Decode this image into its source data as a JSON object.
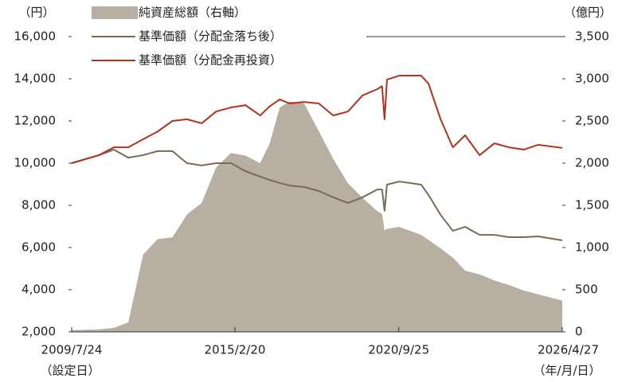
{
  "chart_data": {
    "type": "line",
    "y_label": "（円）",
    "y2_label": "（億円）",
    "x_start_note": "（設定日）",
    "x_end_note": "（年/月/日）",
    "x": [
      "2009/7/24",
      "2010/7/1",
      "2011/1/1",
      "2011/7/1",
      "2012/1/1",
      "2012/7/1",
      "2013/1/1",
      "2013/7/1",
      "2014/1/1",
      "2014/7/1",
      "2015/1/1",
      "2015/7/1",
      "2016/1/1",
      "2016/5/1",
      "2016/9/1",
      "2017/1/1",
      "2017/7/1",
      "2018/1/1",
      "2018/7/1",
      "2019/1/1",
      "2019/7/1",
      "2020/1/1",
      "2020/3/1",
      "2020/4/1",
      "2020/5/1",
      "2020/10/1",
      "2021/7/1",
      "2021/10/1",
      "2022/3/1",
      "2022/8/1",
      "2023/1/1",
      "2023/7/1",
      "2024/1/1",
      "2024/7/1",
      "2025/1/1",
      "2025/7/1",
      "2026/4/27"
    ],
    "xlim": [
      "2009/7/24",
      "2026/4/27"
    ],
    "xticks": [
      "2009/7/24",
      "2015/2/20",
      "2020/9/25",
      "2026/4/27"
    ],
    "ylim": [
      2000,
      16000
    ],
    "yticks": [
      {
        "value": 2000,
        "label": "2,000"
      },
      {
        "value": 4000,
        "label": "4,000"
      },
      {
        "value": 6000,
        "label": "6,000"
      },
      {
        "value": 8000,
        "label": "8,000"
      },
      {
        "value": 10000,
        "label": "10,000"
      },
      {
        "value": 12000,
        "label": "12,000"
      },
      {
        "value": 14000,
        "label": "14,000"
      },
      {
        "value": 16000,
        "label": "16,000"
      }
    ],
    "y2lim": [
      0,
      3500
    ],
    "y2ticks": [
      0,
      500,
      {
        "value": 1000,
        "label": "1,000"
      },
      {
        "value": 1500,
        "label": "1,500"
      },
      {
        "value": 2000,
        "label": "2,000"
      },
      {
        "value": 2500,
        "label": "2,500"
      },
      {
        "value": 3000,
        "label": "3,000"
      },
      {
        "value": 3500,
        "label": "3,500"
      }
    ],
    "series": [
      {
        "name": "純資産総額（右軸）",
        "type": "area",
        "axis": "y2",
        "color": "#b7afa2",
        "values": [
          20,
          30,
          47,
          113,
          915,
          1100,
          1120,
          1390,
          1530,
          1950,
          2120,
          2090,
          2000,
          2240,
          2660,
          2730,
          2710,
          2380,
          2050,
          1760,
          1590,
          1430,
          1400,
          1200,
          1220,
          1245,
          1150,
          1090,
          990,
          880,
          725,
          680,
          610,
          555,
          490,
          445,
          370
        ]
      },
      {
        "name": "基準価額（分配金落ち後）",
        "type": "line",
        "color": "#7a6a55",
        "values": [
          10000,
          10380,
          10640,
          10260,
          10380,
          10570,
          10570,
          10000,
          9890,
          10000,
          10000,
          9620,
          9360,
          9200,
          9060,
          8940,
          8870,
          8680,
          8380,
          8110,
          8380,
          8750,
          8750,
          7740,
          8980,
          9130,
          8980,
          8490,
          7550,
          6790,
          6980,
          6600,
          6600,
          6490,
          6490,
          6530,
          6340
        ]
      },
      {
        "name": "基準価額（分配金再投資）",
        "type": "line",
        "color": "#b5301e",
        "values": [
          10000,
          10380,
          10750,
          10750,
          11130,
          11500,
          12000,
          12080,
          11890,
          12450,
          12640,
          12750,
          12260,
          12700,
          13020,
          12830,
          12900,
          12830,
          12260,
          12450,
          13210,
          13510,
          13650,
          12080,
          13960,
          14150,
          14150,
          13770,
          12080,
          10750,
          11320,
          10380,
          10940,
          10750,
          10640,
          10870,
          10720
        ]
      }
    ]
  }
}
